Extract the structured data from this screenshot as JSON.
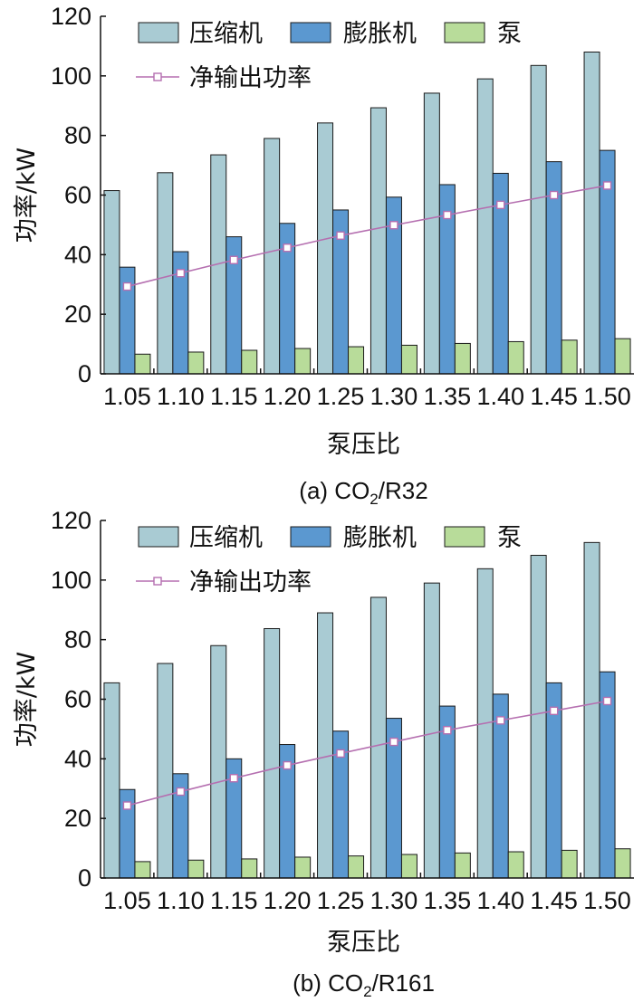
{
  "colors": {
    "compressor": "#a9cbd3",
    "expander": "#5b98d0",
    "pump": "#b8dc9a",
    "net": "#b56fb0",
    "axis": "#111111"
  },
  "chart_data": [
    {
      "type": "bar",
      "caption": "(a) CO",
      "caption_sub": "2",
      "caption_tail": "/R32",
      "xlabel": "泵压比",
      "ylabel": "功率/kW",
      "ylim": [
        0,
        120
      ],
      "yticks": [
        "0",
        "20",
        "40",
        "60",
        "80",
        "100",
        "120"
      ],
      "categories": [
        "1.05",
        "1.10",
        "1.15",
        "1.20",
        "1.25",
        "1.30",
        "1.35",
        "1.40",
        "1.45",
        "1.50"
      ],
      "series": [
        {
          "name": "压缩机",
          "type": "bar",
          "values": [
            61.5,
            67.5,
            73.5,
            79,
            84.2,
            89.3,
            94.2,
            99,
            103.5,
            108
          ]
        },
        {
          "name": "膨胀机",
          "type": "bar",
          "values": [
            35.8,
            41,
            46,
            50.5,
            55,
            59.3,
            63.5,
            67.3,
            71.2,
            75
          ]
        },
        {
          "name": "泵",
          "type": "bar",
          "values": [
            6.6,
            7.3,
            7.9,
            8.5,
            9.1,
            9.6,
            10.2,
            10.8,
            11.3,
            11.8
          ]
        },
        {
          "name": "净输出功率",
          "type": "line",
          "values": [
            29.3,
            33.8,
            38.2,
            42.3,
            46.4,
            49.9,
            53.3,
            56.7,
            60,
            63.2
          ]
        }
      ]
    },
    {
      "type": "bar",
      "caption": "(b) CO",
      "caption_sub": "2",
      "caption_tail": "/R161",
      "xlabel": "泵压比",
      "ylabel": "功率/kW",
      "ylim": [
        0,
        120
      ],
      "yticks": [
        "0",
        "20",
        "40",
        "60",
        "80",
        "100",
        "120"
      ],
      "categories": [
        "1.05",
        "1.10",
        "1.15",
        "1.20",
        "1.25",
        "1.30",
        "1.35",
        "1.40",
        "1.45",
        "1.50"
      ],
      "series": [
        {
          "name": "压缩机",
          "type": "bar",
          "values": [
            65.5,
            72,
            78,
            83.7,
            89,
            94.2,
            99,
            103.8,
            108.3,
            112.6
          ]
        },
        {
          "name": "膨胀机",
          "type": "bar",
          "values": [
            29.7,
            35,
            40,
            44.8,
            49.3,
            53.6,
            57.7,
            61.7,
            65.5,
            69.2
          ]
        },
        {
          "name": "泵",
          "type": "bar",
          "values": [
            5.5,
            6,
            6.4,
            7,
            7.4,
            7.9,
            8.4,
            8.8,
            9.3,
            9.8
          ]
        },
        {
          "name": "净输出功率",
          "type": "line",
          "values": [
            24.3,
            29,
            33.5,
            37.8,
            41.8,
            45.7,
            49.6,
            52.9,
            56.1,
            59.4
          ]
        }
      ]
    }
  ]
}
